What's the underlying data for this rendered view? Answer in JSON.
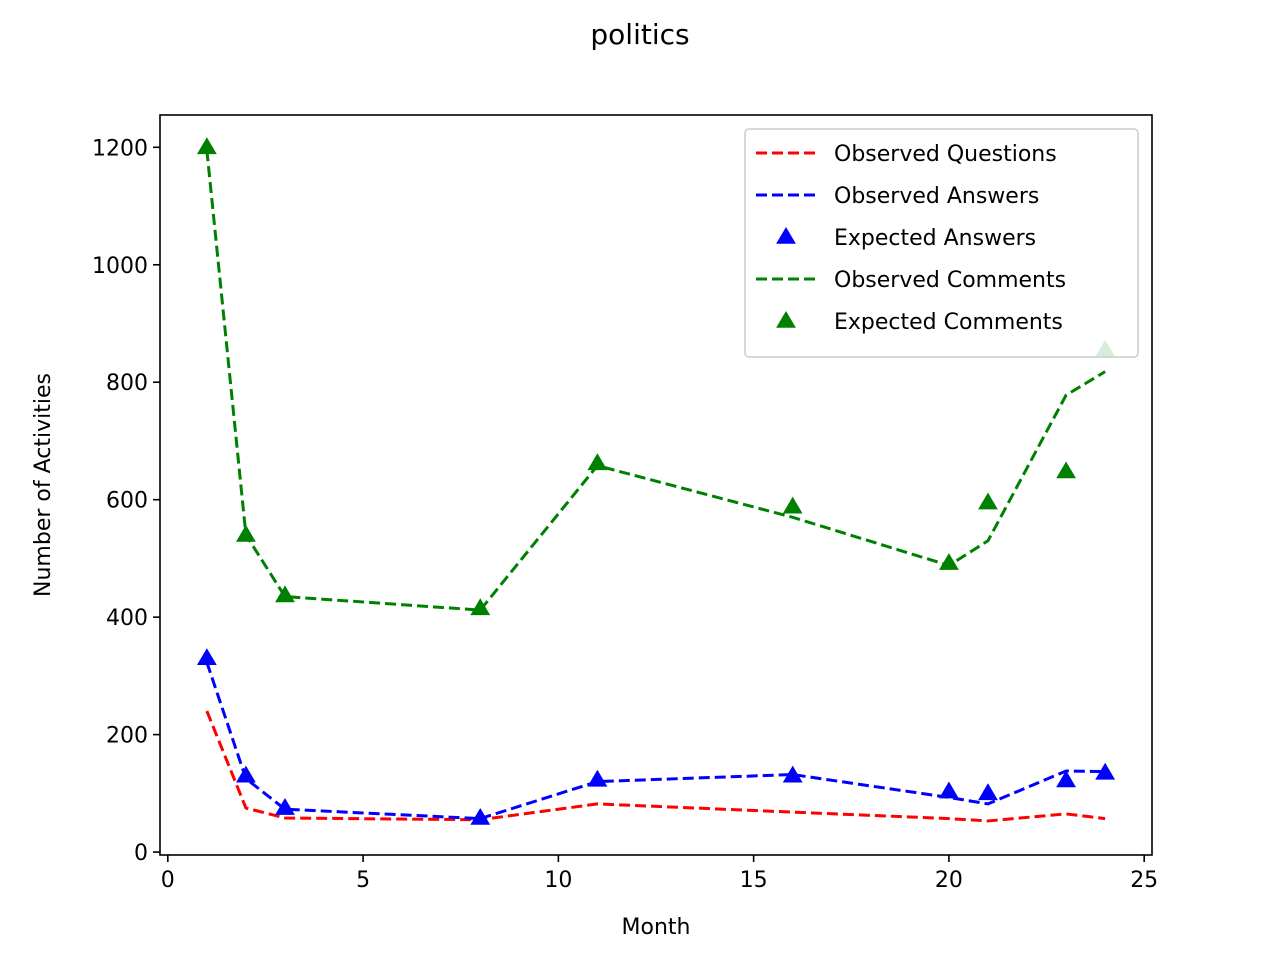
{
  "chart_data": {
    "type": "line",
    "title": "politics",
    "xlabel": "Month",
    "ylabel": "Number of Activities",
    "xlim": [
      -0.2,
      25.2
    ],
    "ylim": [
      -5,
      1255
    ],
    "xticks": [
      0,
      5,
      10,
      15,
      20,
      25
    ],
    "yticks": [
      0,
      200,
      400,
      600,
      800,
      1000,
      1200
    ],
    "x": [
      1,
      2,
      3,
      8,
      11,
      16,
      20,
      21,
      23,
      24
    ],
    "legend_position": "top-right",
    "grid": false,
    "series": [
      {
        "name": "Observed Questions",
        "style": "dashed-line",
        "color": "#ff0000",
        "values": [
          240,
          75,
          58,
          55,
          82,
          68,
          57,
          53,
          65,
          57
        ]
      },
      {
        "name": "Observed Answers",
        "style": "dashed-line",
        "color": "#0000ff",
        "values": [
          323,
          125,
          73,
          57,
          120,
          132,
          93,
          82,
          138,
          137
        ]
      },
      {
        "name": "Expected Answers",
        "style": "triangle-marker",
        "color": "#0000ff",
        "values": [
          330,
          130,
          75,
          58,
          123,
          130,
          103,
          100,
          122,
          135
        ]
      },
      {
        "name": "Observed Comments",
        "style": "dashed-line",
        "color": "#008000",
        "values": [
          1195,
          540,
          435,
          412,
          658,
          570,
          488,
          530,
          778,
          818
        ]
      },
      {
        "name": "Expected Comments",
        "style": "triangle-marker",
        "color": "#008000",
        "values": [
          1200,
          540,
          437,
          415,
          662,
          588,
          492,
          595,
          648,
          855
        ]
      }
    ]
  }
}
